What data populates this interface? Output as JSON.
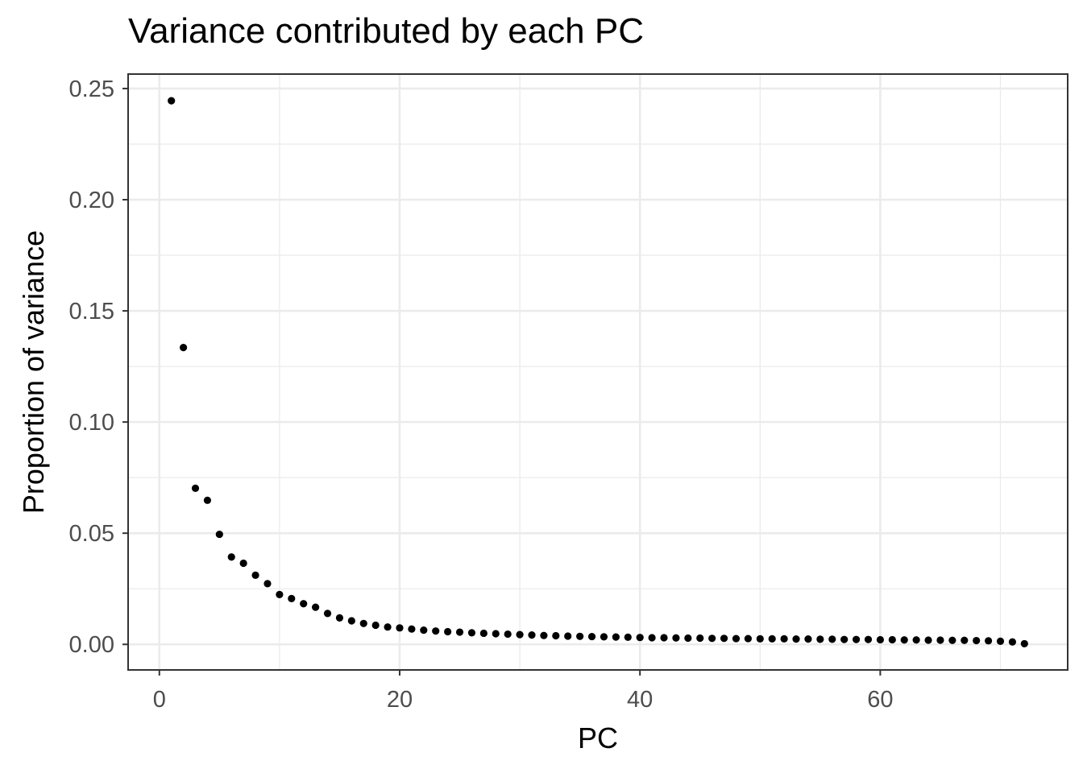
{
  "chart_data": {
    "type": "scatter",
    "title": "Variance contributed by each PC",
    "xlabel": "PC",
    "ylabel": "Proportion of variance",
    "xlim": [
      -2.6,
      75.6
    ],
    "ylim": [
      -0.0115,
      0.2565
    ],
    "x_ticks": [
      0,
      20,
      40,
      60
    ],
    "x_tick_labels": [
      "0",
      "20",
      "40",
      "60"
    ],
    "x_minor_ticks": [
      10,
      30,
      50,
      70
    ],
    "y_ticks": [
      0,
      0.05,
      0.1,
      0.15,
      0.2,
      0.25
    ],
    "y_tick_labels": [
      "0.00",
      "0.05",
      "0.10",
      "0.15",
      "0.20",
      "0.25"
    ],
    "y_minor_ticks": [
      0.025,
      0.075,
      0.125,
      0.175,
      0.225
    ],
    "grid": true,
    "theme": "bw",
    "point_color": "#000000",
    "series": [
      {
        "x": [
          1,
          2,
          3,
          4,
          5,
          6,
          7,
          8,
          9,
          10,
          11,
          12,
          13,
          14,
          15,
          16,
          17,
          18,
          19,
          20,
          21,
          22,
          23,
          24,
          25,
          26,
          27,
          28,
          29,
          30,
          31,
          32,
          33,
          34,
          35,
          36,
          37,
          38,
          39,
          40,
          41,
          42,
          43,
          44,
          45,
          46,
          47,
          48,
          49,
          50,
          51,
          52,
          53,
          54,
          55,
          56,
          57,
          58,
          59,
          60,
          61,
          62,
          63,
          64,
          65,
          66,
          67,
          68,
          69,
          70,
          71,
          72
        ],
        "y": [
          0.2445,
          0.1335,
          0.0702,
          0.0648,
          0.0495,
          0.0393,
          0.0365,
          0.0311,
          0.0273,
          0.0224,
          0.0206,
          0.0183,
          0.0167,
          0.0139,
          0.0119,
          0.0106,
          0.0094,
          0.0086,
          0.0078,
          0.0074,
          0.0069,
          0.0064,
          0.006,
          0.0057,
          0.0055,
          0.0052,
          0.005,
          0.0048,
          0.0046,
          0.0044,
          0.0042,
          0.004,
          0.0039,
          0.0037,
          0.0036,
          0.0035,
          0.0034,
          0.0033,
          0.0032,
          0.0031,
          0.003,
          0.003,
          0.0029,
          0.0028,
          0.0028,
          0.0027,
          0.0027,
          0.0026,
          0.0026,
          0.0025,
          0.0025,
          0.0025,
          0.0024,
          0.0024,
          0.0023,
          0.0023,
          0.0022,
          0.0022,
          0.0022,
          0.0021,
          0.0021,
          0.002,
          0.002,
          0.0019,
          0.0019,
          0.0018,
          0.0018,
          0.0017,
          0.0016,
          0.0014,
          0.0011,
          0.0003
        ]
      }
    ]
  }
}
